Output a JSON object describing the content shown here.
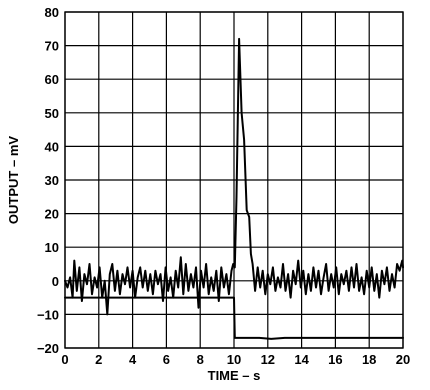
{
  "chart_data": {
    "type": "line",
    "xlabel": "TIME – s",
    "ylabel": "OUTPUT – mV",
    "xlim": [
      0,
      20
    ],
    "ylim": [
      -20,
      80
    ],
    "xticks": [
      0,
      2,
      4,
      6,
      8,
      10,
      12,
      14,
      16,
      18,
      20
    ],
    "yticks": [
      -20,
      -10,
      0,
      10,
      20,
      30,
      40,
      50,
      60,
      70,
      80
    ],
    "xtick_labels": [
      "0",
      "2",
      "4",
      "6",
      "8",
      "10",
      "12",
      "14",
      "16",
      "18",
      "20"
    ],
    "ytick_labels": [
      "−20",
      "−10",
      "0",
      "10",
      "20",
      "30",
      "40",
      "50",
      "60",
      "70",
      "80"
    ],
    "grid": true,
    "series": [
      {
        "points": [
          [
            0.0,
            0
          ],
          [
            0.15,
            -2
          ],
          [
            0.3,
            1
          ],
          [
            0.45,
            -5
          ],
          [
            0.55,
            6
          ],
          [
            0.7,
            -3
          ],
          [
            0.85,
            4
          ],
          [
            1.0,
            -6
          ],
          [
            1.15,
            2
          ],
          [
            1.3,
            -1
          ],
          [
            1.45,
            5
          ],
          [
            1.6,
            -4
          ],
          [
            1.75,
            1
          ],
          [
            1.9,
            -2
          ],
          [
            2.05,
            4
          ],
          [
            2.2,
            -5
          ],
          [
            2.35,
            0
          ],
          [
            2.5,
            -10
          ],
          [
            2.65,
            2
          ],
          [
            2.8,
            5
          ],
          [
            2.95,
            -3
          ],
          [
            3.1,
            3
          ],
          [
            3.25,
            -4
          ],
          [
            3.4,
            2
          ],
          [
            3.55,
            -1
          ],
          [
            3.7,
            4
          ],
          [
            3.85,
            -2
          ],
          [
            4.0,
            3
          ],
          [
            4.15,
            -5
          ],
          [
            4.3,
            1
          ],
          [
            4.45,
            4
          ],
          [
            4.6,
            -2
          ],
          [
            4.75,
            3
          ],
          [
            4.9,
            -3
          ],
          [
            5.05,
            2
          ],
          [
            5.2,
            -4
          ],
          [
            5.35,
            3
          ],
          [
            5.5,
            -1
          ],
          [
            5.65,
            2
          ],
          [
            5.8,
            -6
          ],
          [
            5.95,
            4
          ],
          [
            6.1,
            -3
          ],
          [
            6.25,
            1
          ],
          [
            6.4,
            -5
          ],
          [
            6.55,
            3
          ],
          [
            6.7,
            -2
          ],
          [
            6.85,
            7
          ],
          [
            7.0,
            -4
          ],
          [
            7.15,
            5
          ],
          [
            7.3,
            -3
          ],
          [
            7.45,
            2
          ],
          [
            7.6,
            -2
          ],
          [
            7.75,
            4
          ],
          [
            7.9,
            -8
          ],
          [
            8.05,
            3
          ],
          [
            8.2,
            -2
          ],
          [
            8.35,
            5
          ],
          [
            8.5,
            -4
          ],
          [
            8.65,
            1
          ],
          [
            8.8,
            -3
          ],
          [
            8.95,
            3
          ],
          [
            9.1,
            -6
          ],
          [
            9.25,
            4
          ],
          [
            9.4,
            -2
          ],
          [
            9.55,
            2
          ],
          [
            9.7,
            -4
          ],
          [
            9.85,
            3
          ],
          [
            9.95,
            5
          ],
          [
            10.05,
            4
          ],
          [
            10.15,
            25
          ],
          [
            10.3,
            72
          ],
          [
            10.45,
            50
          ],
          [
            10.6,
            42
          ],
          [
            10.75,
            21
          ],
          [
            10.9,
            19
          ],
          [
            11.0,
            8
          ],
          [
            11.1,
            5
          ],
          [
            11.25,
            -3
          ],
          [
            11.4,
            4
          ],
          [
            11.55,
            -2
          ],
          [
            11.7,
            3
          ],
          [
            11.85,
            -4
          ],
          [
            12.0,
            2
          ],
          [
            12.15,
            -1
          ],
          [
            12.3,
            4
          ],
          [
            12.45,
            -3
          ],
          [
            12.6,
            1
          ],
          [
            12.75,
            -2
          ],
          [
            12.9,
            5
          ],
          [
            13.05,
            -3
          ],
          [
            13.2,
            2
          ],
          [
            13.35,
            -5
          ],
          [
            13.5,
            3
          ],
          [
            13.65,
            -1
          ],
          [
            13.8,
            6
          ],
          [
            13.95,
            -2
          ],
          [
            14.1,
            3
          ],
          [
            14.25,
            -4
          ],
          [
            14.4,
            2
          ],
          [
            14.55,
            -3
          ],
          [
            14.7,
            4
          ],
          [
            14.85,
            -2
          ],
          [
            15.0,
            3
          ],
          [
            15.15,
            -4
          ],
          [
            15.3,
            1
          ],
          [
            15.45,
            5
          ],
          [
            15.6,
            -3
          ],
          [
            15.75,
            2
          ],
          [
            15.9,
            -2
          ],
          [
            16.05,
            4
          ],
          [
            16.2,
            -4
          ],
          [
            16.35,
            2
          ],
          [
            16.5,
            -1
          ],
          [
            16.65,
            3
          ],
          [
            16.8,
            -3
          ],
          [
            16.95,
            4
          ],
          [
            17.1,
            -2
          ],
          [
            17.25,
            5
          ],
          [
            17.4,
            -3
          ],
          [
            17.55,
            1
          ],
          [
            17.7,
            -4
          ],
          [
            17.85,
            3
          ],
          [
            18.0,
            -2
          ],
          [
            18.15,
            4
          ],
          [
            18.3,
            -3
          ],
          [
            18.45,
            2
          ],
          [
            18.6,
            -5
          ],
          [
            18.75,
            3
          ],
          [
            18.9,
            -1
          ],
          [
            19.05,
            4
          ],
          [
            19.2,
            -3
          ],
          [
            19.35,
            2
          ],
          [
            19.5,
            -2
          ],
          [
            19.65,
            5
          ],
          [
            19.8,
            3
          ],
          [
            19.95,
            6
          ],
          [
            20.0,
            4
          ]
        ]
      },
      {
        "points": [
          [
            0.0,
            -5
          ],
          [
            10.0,
            -5
          ],
          [
            10.05,
            -17
          ],
          [
            11.5,
            -17
          ],
          [
            12.2,
            -17.3
          ],
          [
            13.0,
            -17
          ],
          [
            20.0,
            -17
          ]
        ]
      }
    ]
  }
}
